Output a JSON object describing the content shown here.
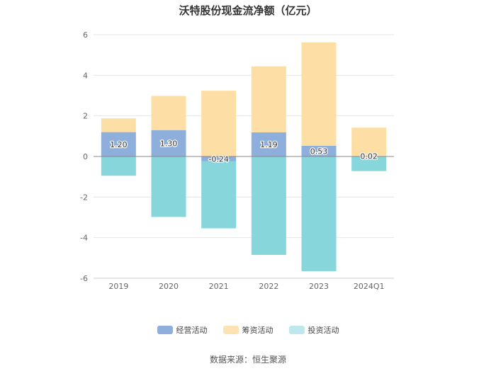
{
  "chart_data": {
    "type": "bar",
    "stacked": true,
    "title": "沃特股份现金流净额（亿元）",
    "categories": [
      "2019",
      "2020",
      "2021",
      "2022",
      "2023",
      "2024Q1"
    ],
    "series": [
      {
        "name": "经营活动",
        "color": "#8eaedb",
        "values": [
          1.2,
          1.3,
          -0.24,
          1.19,
          0.53,
          0.02
        ],
        "labels": [
          "1.20",
          "1.30",
          "-0.24",
          "1.19",
          "0.53",
          "0.02"
        ]
      },
      {
        "name": "筹资活动",
        "color": "#fddea4",
        "values": [
          0.68,
          1.68,
          3.24,
          3.25,
          5.09,
          1.4
        ]
      },
      {
        "name": "投资活动",
        "color": "#86d6db",
        "values": [
          -0.95,
          -2.98,
          -3.3,
          -4.85,
          -5.65,
          -0.72
        ]
      }
    ],
    "legend_colors": [
      "#8eaedb",
      "#fde2b3",
      "#bfe8ec"
    ],
    "ylim": [
      -6,
      6
    ],
    "yticks": [
      "6",
      "4",
      "2",
      "0",
      "-2",
      "-4",
      "-6"
    ],
    "ytick_values": [
      6,
      4,
      2,
      0,
      -2,
      -4,
      -6
    ],
    "grid": true,
    "legend_position": "bottom",
    "source": "数据来源：恒生聚源"
  }
}
